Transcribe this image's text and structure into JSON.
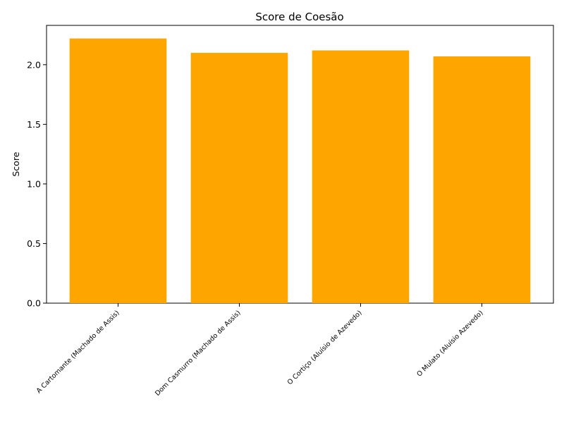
{
  "chart_data": {
    "type": "bar",
    "title": "Score de Coesão",
    "xlabel": "",
    "ylabel": "Score",
    "categories": [
      "A Cartomante (Machado de Assis)",
      "Dom Casmurro (Machado de Assis)",
      "O Cortiço (Aluísio de Azevedo)",
      "O Mulato (Aluísio Azevedo)"
    ],
    "values": [
      2.22,
      2.1,
      2.12,
      2.07
    ],
    "ylim": [
      0,
      2.33
    ],
    "yticks": [
      "0.0",
      "0.5",
      "1.0",
      "1.5",
      "2.0"
    ],
    "bar_color": "#ffa500",
    "grid": false,
    "legend": "none"
  }
}
